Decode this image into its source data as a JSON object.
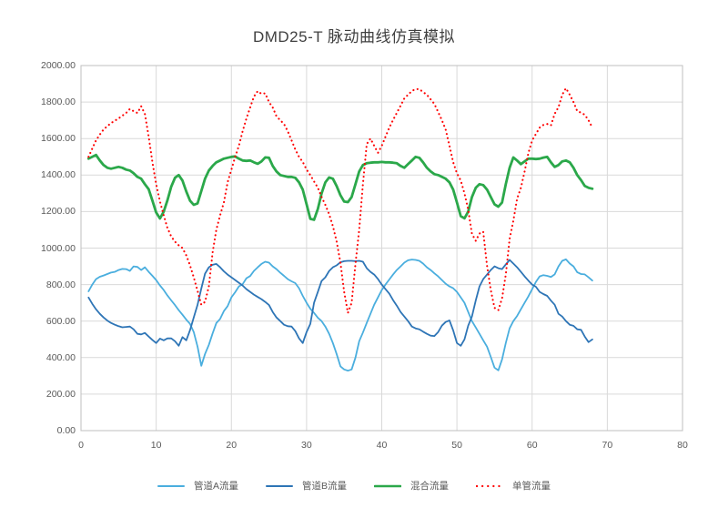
{
  "title": "DMD25-T 脉动曲线仿真模拟",
  "chart_data": {
    "type": "line",
    "title": "DMD25-T 脉动曲线仿真模拟",
    "x_start": 1,
    "x_step": 0.5,
    "x_axis": {
      "min": 0,
      "max": 80,
      "tick_values": [
        0,
        10,
        20,
        30,
        40,
        50,
        60,
        70,
        80
      ],
      "tick_labels": [
        "0",
        "10",
        "20",
        "30",
        "40",
        "50",
        "60",
        "70",
        "80"
      ]
    },
    "y_axis": {
      "min": 0,
      "max": 2000,
      "tick_values": [
        0,
        200,
        400,
        600,
        800,
        1000,
        1200,
        1400,
        1600,
        1800,
        2000
      ],
      "tick_labels": [
        "0.00",
        "200.00",
        "400.00",
        "600.00",
        "800.00",
        "1000.00",
        "1200.00",
        "1400.00",
        "1600.00",
        "1800.00",
        "2000.00"
      ]
    },
    "grid": true,
    "legend_position": "bottom",
    "series": [
      {
        "name": "管道A流量",
        "color": "#4AAEDE",
        "style": "solid",
        "width": 1.8,
        "values": [
          763,
          800,
          830,
          843,
          850,
          858,
          866,
          870,
          880,
          886,
          885,
          875,
          900,
          897,
          880,
          895,
          870,
          848,
          825,
          795,
          770,
          740,
          713,
          688,
          660,
          635,
          608,
          585,
          540,
          460,
          355,
          420,
          470,
          532,
          589,
          612,
          655,
          682,
          730,
          758,
          790,
          802,
          835,
          847,
          875,
          895,
          913,
          925,
          920,
          900,
          885,
          865,
          848,
          830,
          818,
          808,
          780,
          738,
          700,
          668,
          645,
          618,
          600,
          570,
          530,
          480,
          420,
          352,
          335,
          328,
          335,
          400,
          490,
          537,
          590,
          640,
          690,
          730,
          770,
          800,
          828,
          855,
          880,
          900,
          920,
          933,
          937,
          935,
          930,
          915,
          895,
          880,
          862,
          845,
          825,
          805,
          790,
          780,
          760,
          730,
          700,
          650,
          600,
          565,
          530,
          495,
          460,
          404,
          345,
          330,
          390,
          480,
          560,
          600,
          628,
          665,
          700,
          735,
          775,
          815,
          845,
          852,
          848,
          842,
          856,
          900,
          930,
          938,
          915,
          900,
          868,
          858,
          856,
          840,
          822
        ]
      },
      {
        "name": "管道B流量",
        "color": "#2E75B6",
        "style": "solid",
        "width": 1.8,
        "values": [
          729,
          695,
          665,
          640,
          620,
          603,
          590,
          580,
          572,
          566,
          568,
          570,
          555,
          530,
          527,
          535,
          515,
          497,
          480,
          504,
          495,
          505,
          505,
          490,
          465,
          512,
          495,
          550,
          620,
          690,
          778,
          860,
          895,
          908,
          913,
          895,
          873,
          855,
          840,
          825,
          810,
          795,
          775,
          760,
          745,
          732,
          720,
          705,
          688,
          650,
          620,
          600,
          580,
          572,
          570,
          545,
          505,
          480,
          540,
          585,
          700,
          760,
          820,
          840,
          875,
          895,
          905,
          922,
          928,
          930,
          930,
          928,
          930,
          925,
          890,
          870,
          855,
          830,
          800,
          775,
          750,
          715,
          685,
          650,
          625,
          600,
          570,
          560,
          555,
          542,
          530,
          520,
          518,
          540,
          575,
          595,
          604,
          549,
          480,
          465,
          500,
          575,
          625,
          713,
          790,
          830,
          855,
          880,
          900,
          890,
          885,
          910,
          935,
          915,
          895,
          870,
          845,
          822,
          800,
          788,
          760,
          748,
          738,
          712,
          690,
          640,
          625,
          600,
          580,
          574,
          555,
          552,
          515,
          485,
          500
        ]
      },
      {
        "name": "混合流量",
        "color": "#2BA84A",
        "style": "solid",
        "width": 2.8,
        "values": [
          1490,
          1500,
          1510,
          1480,
          1455,
          1440,
          1435,
          1440,
          1445,
          1440,
          1430,
          1425,
          1410,
          1390,
          1380,
          1350,
          1322,
          1260,
          1195,
          1162,
          1200,
          1262,
          1337,
          1385,
          1400,
          1370,
          1310,
          1260,
          1237,
          1245,
          1312,
          1380,
          1425,
          1450,
          1470,
          1480,
          1490,
          1495,
          1500,
          1502,
          1490,
          1480,
          1478,
          1480,
          1470,
          1462,
          1475,
          1497,
          1495,
          1450,
          1420,
          1400,
          1395,
          1390,
          1390,
          1385,
          1360,
          1320,
          1240,
          1160,
          1155,
          1215,
          1300,
          1360,
          1387,
          1380,
          1340,
          1290,
          1255,
          1252,
          1280,
          1350,
          1420,
          1455,
          1465,
          1468,
          1470,
          1470,
          1472,
          1470,
          1470,
          1468,
          1465,
          1450,
          1440,
          1460,
          1480,
          1500,
          1495,
          1470,
          1440,
          1420,
          1405,
          1400,
          1390,
          1380,
          1360,
          1320,
          1250,
          1175,
          1163,
          1200,
          1280,
          1330,
          1350,
          1345,
          1320,
          1280,
          1240,
          1227,
          1250,
          1350,
          1440,
          1497,
          1480,
          1460,
          1475,
          1490,
          1490,
          1488,
          1490,
          1496,
          1500,
          1470,
          1445,
          1455,
          1475,
          1480,
          1470,
          1440,
          1400,
          1372,
          1340,
          1330,
          1325
        ]
      },
      {
        "name": "单管流量",
        "color": "#FF0000",
        "style": "dotted",
        "width": 2.1,
        "values": [
          1500,
          1545,
          1590,
          1622,
          1650,
          1668,
          1685,
          1698,
          1710,
          1725,
          1740,
          1762,
          1750,
          1740,
          1777,
          1735,
          1610,
          1470,
          1350,
          1255,
          1180,
          1110,
          1063,
          1035,
          1015,
          1000,
          960,
          905,
          840,
          765,
          690,
          705,
          790,
          975,
          1100,
          1180,
          1250,
          1360,
          1430,
          1500,
          1560,
          1640,
          1710,
          1770,
          1830,
          1860,
          1845,
          1848,
          1800,
          1770,
          1722,
          1700,
          1680,
          1640,
          1590,
          1540,
          1500,
          1472,
          1430,
          1400,
          1365,
          1330,
          1280,
          1237,
          1185,
          1120,
          1037,
          920,
          760,
          645,
          700,
          913,
          1100,
          1350,
          1570,
          1600,
          1560,
          1522,
          1560,
          1610,
          1660,
          1701,
          1740,
          1780,
          1820,
          1840,
          1861,
          1871,
          1871,
          1855,
          1840,
          1815,
          1790,
          1745,
          1700,
          1650,
          1560,
          1470,
          1410,
          1370,
          1300,
          1210,
          1078,
          1040,
          1080,
          1090,
          903,
          770,
          673,
          660,
          725,
          855,
          1050,
          1150,
          1270,
          1330,
          1420,
          1520,
          1590,
          1625,
          1660,
          1675,
          1680,
          1672,
          1735,
          1772,
          1840,
          1876,
          1840,
          1800,
          1750,
          1742,
          1730,
          1700,
          1660
        ]
      }
    ],
    "plot_colors": {
      "grid": "#D9D9D9",
      "border": "#BFBFBF",
      "tick_text": "#595959",
      "title_text": "#404040",
      "background": "#FFFFFF"
    }
  }
}
